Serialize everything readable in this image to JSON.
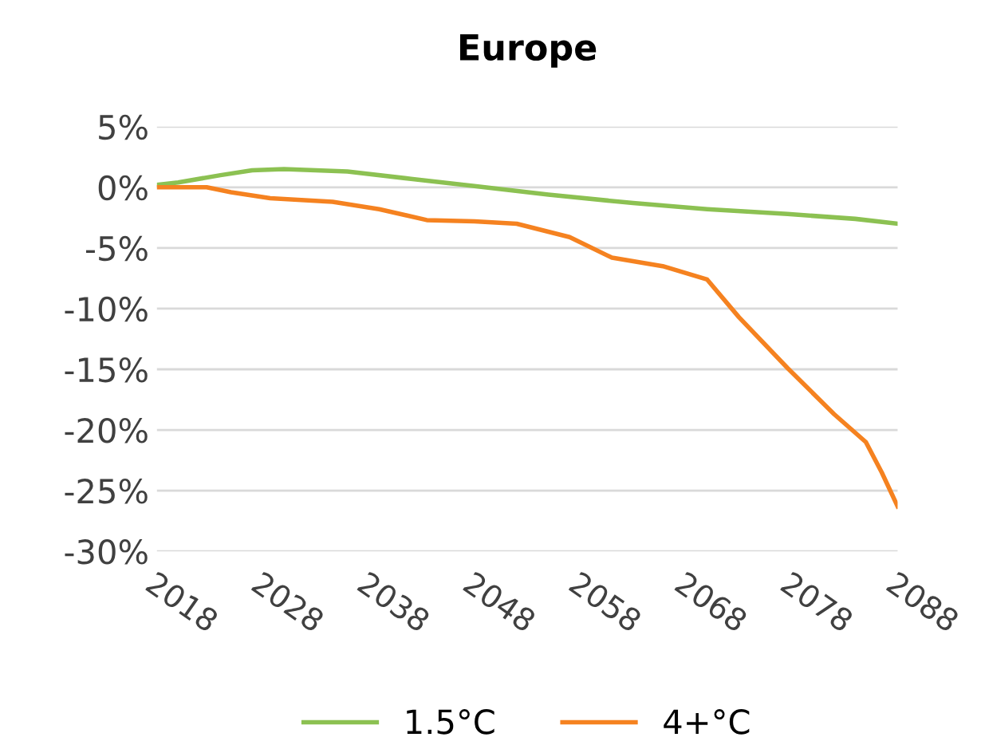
{
  "chart_data": {
    "type": "line",
    "title": "Europe",
    "xlim": [
      2018,
      2088
    ],
    "xticks": [
      2018,
      2028,
      2038,
      2048,
      2058,
      2068,
      2078,
      2088
    ],
    "ylim": [
      -30,
      5
    ],
    "yticks": [
      {
        "value": 5,
        "label": "5%"
      },
      {
        "value": 0,
        "label": "0%"
      },
      {
        "value": -5,
        "label": "-5%"
      },
      {
        "value": -10,
        "label": "-10%"
      },
      {
        "value": -15,
        "label": "-15%"
      },
      {
        "value": -20,
        "label": "-20%"
      },
      {
        "value": -25,
        "label": "-25%"
      },
      {
        "value": -30,
        "label": "-30%"
      }
    ],
    "grid": "y",
    "legend": "bottom",
    "marker": "none",
    "line_style": "solid",
    "series": [
      {
        "name": "1.5°C",
        "color": "#8cc152",
        "x": [
          2018,
          2020,
          2024,
          2027,
          2030,
          2033,
          2036,
          2042,
          2048,
          2055,
          2063,
          2070,
          2077.6,
          2084,
          2088
        ],
        "values": [
          0.2,
          0.4,
          1,
          1.4,
          1.5,
          1.4,
          1.3,
          0.7,
          0.1,
          -0.6,
          -1.3,
          -1.8,
          -2.2,
          -2.6,
          -3
        ]
      },
      {
        "name": "4+°C",
        "color": "#f58220",
        "x": [
          2018,
          2020,
          2022.7,
          2025,
          2028.7,
          2034.6,
          2039,
          2043.5,
          2048,
          2052,
          2057,
          2061,
          2065.8,
          2070,
          2073,
          2077.6,
          2082,
          2085,
          2086.5,
          2088
        ],
        "values": [
          0,
          0,
          0,
          -0.4,
          -0.9,
          -1.2,
          -1.8,
          -2.7,
          -2.8,
          -3,
          -4.1,
          -5.8,
          -6.5,
          -7.6,
          -10.7,
          -14.9,
          -18.7,
          -21,
          -23.5,
          -26.3
        ]
      }
    ]
  }
}
